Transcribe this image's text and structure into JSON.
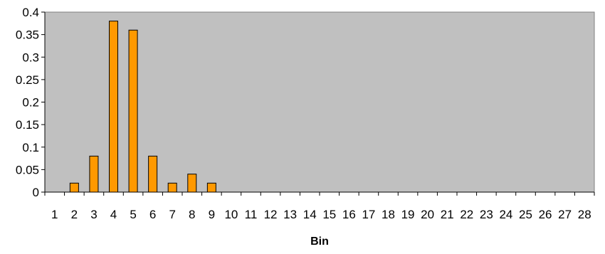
{
  "chart_data": {
    "type": "bar",
    "title": "",
    "xlabel": "Bin",
    "ylabel": "",
    "categories": [
      "1",
      "2",
      "3",
      "4",
      "5",
      "6",
      "7",
      "8",
      "9",
      "10",
      "11",
      "12",
      "13",
      "14",
      "15",
      "16",
      "17",
      "18",
      "19",
      "20",
      "21",
      "22",
      "23",
      "24",
      "25",
      "26",
      "27",
      "28"
    ],
    "values": [
      0,
      0.02,
      0.08,
      0.38,
      0.36,
      0.08,
      0.02,
      0.04,
      0.02,
      0,
      0,
      0,
      0,
      0,
      0,
      0,
      0,
      0,
      0,
      0,
      0,
      0,
      0,
      0,
      0,
      0,
      0,
      0
    ],
    "ylim": [
      0,
      0.4
    ],
    "yticks": [
      "0",
      "0.05",
      "0.1",
      "0.15",
      "0.2",
      "0.25",
      "0.3",
      "0.35",
      "0.4"
    ],
    "yticks_values": [
      0,
      0.05,
      0.1,
      0.15,
      0.2,
      0.25,
      0.3,
      0.35,
      0.4
    ],
    "grid": false,
    "legend": "none",
    "colors": {
      "plot_background": "#c0c0c0",
      "bar_fill": "#ff9900",
      "bar_stroke": "#000000",
      "axis": "#000000"
    }
  }
}
